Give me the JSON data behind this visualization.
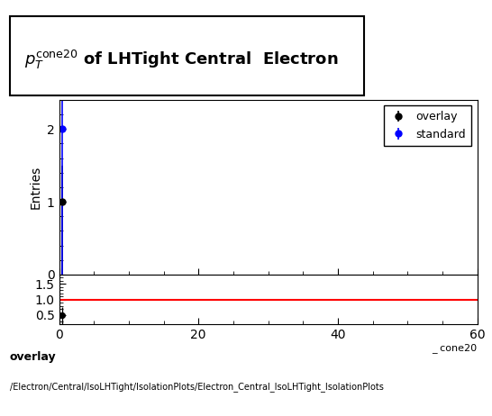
{
  "title_text": "$p_{T}^{cone20}$ of LHTight Central  Electron",
  "xlabel_display": "_ cone20",
  "ylabel_main": "Entries",
  "xlim": [
    0,
    60
  ],
  "ylim_main": [
    0,
    2.4
  ],
  "ylim_ratio": [
    0.2,
    1.8
  ],
  "overlay_x": [
    0.5
  ],
  "overlay_y": [
    1
  ],
  "overlay_yerr": [
    0.5
  ],
  "standard_x": [
    0.5
  ],
  "standard_y": [
    2
  ],
  "standard_yerr": [
    1.0
  ],
  "overlay_color": "#000000",
  "standard_color": "#0000ff",
  "ratio_line_color": "#ff0000",
  "ratio_x": [
    0.5
  ],
  "ratio_y": [
    0.5
  ],
  "ratio_yerr": [
    0.25
  ],
  "background_color": "#ffffff",
  "legend_overlay": "overlay",
  "legend_standard": "standard",
  "footer_line1": "overlay",
  "footer_line2": "/Electron/Central/IsoLHTight/IsolationPlots/Electron_Central_IsoLHTight_IsolationPlots",
  "main_yticks": [
    0,
    1,
    2
  ],
  "ratio_yticks": [
    0.5,
    1,
    1.5
  ],
  "xticks": [
    0,
    20,
    40,
    60
  ]
}
